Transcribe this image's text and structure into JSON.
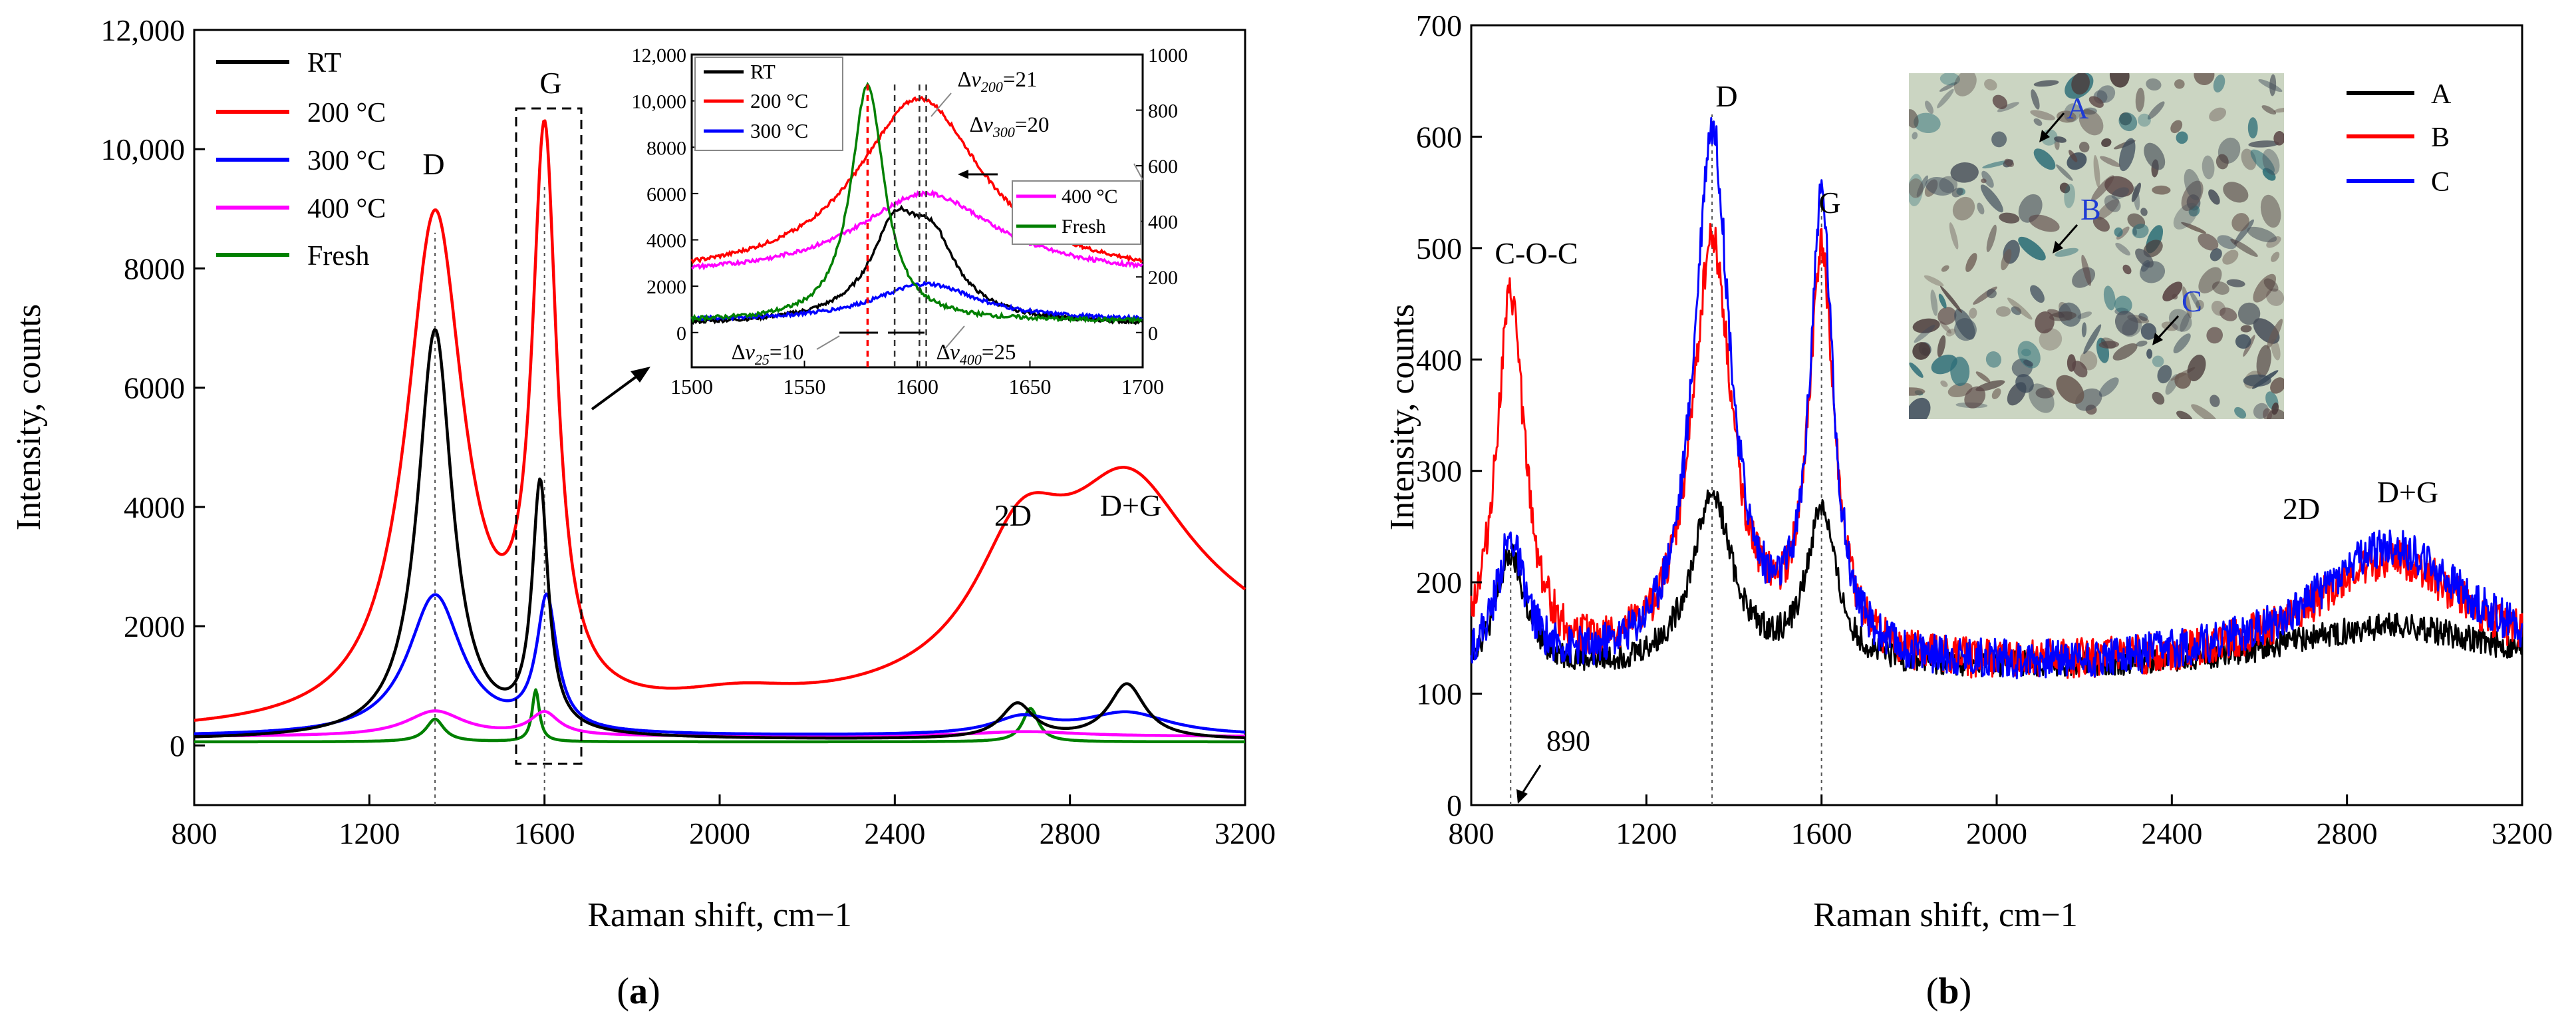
{
  "chart_data": [
    {
      "id": "a",
      "type": "line",
      "panel_label": "a",
      "xlabel": "Raman shift, cm−1",
      "ylabel": "Intensity, counts",
      "xlim": [
        800,
        3200
      ],
      "ylim": [
        -1000,
        12000
      ],
      "x_ticks": [
        800,
        1200,
        1600,
        2000,
        2400,
        2800,
        3200
      ],
      "y_ticks": [
        0,
        2000,
        4000,
        6000,
        8000,
        10000,
        12000
      ],
      "y_tick_labels": [
        "0",
        "2000",
        "4000",
        "6000",
        "8000",
        "10,000",
        "12,000"
      ],
      "series": [
        {
          "name": "RT",
          "color": "#000000",
          "baseline": 90,
          "peaks": [
            [
              1350,
              6850,
              48
            ],
            [
              1590,
              4120,
              22
            ],
            [
              2680,
              580,
              45
            ],
            [
              2930,
              920,
              50
            ]
          ]
        },
        {
          "name": "200 °C",
          "color": "#ff0000",
          "baseline": 120,
          "peaks": [
            [
              1350,
              8500,
              80
            ],
            [
              1600,
              9300,
              34
            ],
            [
              2040,
              280,
              180
            ],
            [
              2690,
              2100,
              130
            ],
            [
              2930,
              2500,
              170
            ],
            [
              3100,
              1700,
              500
            ]
          ]
        },
        {
          "name": "300 °C",
          "color": "#0000ff",
          "baseline": 150,
          "peaks": [
            [
              1350,
              2350,
              75
            ],
            [
              1605,
              2200,
              28
            ],
            [
              2690,
              280,
              80
            ],
            [
              2930,
              380,
              120
            ]
          ]
        },
        {
          "name": "400 °C",
          "color": "#ff00ff",
          "baseline": 150,
          "peaks": [
            [
              1350,
              420,
              80
            ],
            [
              1600,
              380,
              40
            ],
            [
              2700,
              80,
              150
            ]
          ]
        },
        {
          "name": "Fresh",
          "color": "#008000",
          "baseline": 60,
          "peaks": [
            [
              1350,
              380,
              25
            ],
            [
              1580,
              870,
              10
            ],
            [
              2710,
              560,
              22
            ]
          ]
        }
      ],
      "annotations": {
        "D": "D",
        "G": "G",
        "2D": "2D",
        "DG": "D+G"
      },
      "inset": {
        "xlim": [
          1500,
          1700
        ],
        "ylim_left": [
          -1500,
          12000
        ],
        "ylim_right": [
          -125,
          1000
        ],
        "x_ticks": [
          1500,
          1550,
          1600,
          1650,
          1700
        ],
        "y_ticks_left": [
          0,
          2000,
          4000,
          6000,
          8000,
          10000,
          12000
        ],
        "y_tick_labels_left": [
          "0",
          "2000",
          "4000",
          "6000",
          "8000",
          "10,000",
          "12,000"
        ],
        "y_ticks_right": [
          0,
          200,
          400,
          600,
          800,
          1000
        ],
        "series": [
          {
            "name": "RT",
            "color": "#000000",
            "axis": "left",
            "peaks": [
              [
                1590,
                3200,
                12
              ],
              [
                1607,
                2500,
                12
              ],
              [
                1598,
                1000,
                30
              ]
            ],
            "baseline": 300
          },
          {
            "name": "200 °C",
            "color": "#ff0000",
            "axis": "left",
            "peaks": [
              [
                1601,
                7800,
                34
              ]
            ],
            "baseline": 2300
          },
          {
            "name": "300 °C",
            "color": "#0000ff",
            "axis": "left",
            "peaks": [
              [
                1604,
                1600,
                28
              ]
            ],
            "baseline": 500
          },
          {
            "name": "400 °C",
            "color": "#ff00ff",
            "axis": "right",
            "peaks": [
              [
                1604,
                300,
                38
              ]
            ],
            "baseline": 200
          },
          {
            "name": "Fresh",
            "color": "#008000",
            "axis": "right",
            "peaks": [
              [
                1578,
                850,
                9
              ]
            ],
            "baseline": 40
          }
        ],
        "legend_left": [
          "RT",
          "200 °C",
          "300 °C"
        ],
        "legend_right": [
          "400 °C",
          "Fresh"
        ],
        "annotation_v200_prefix": "∆v",
        "annotation_v200_sub": "200",
        "annotation_v200_value": "=21",
        "annotation_v300_prefix": "∆v",
        "annotation_v300_sub": "300",
        "annotation_v300_value": "=20",
        "annotation_v25_prefix": "∆v",
        "annotation_v25_sub": "25",
        "annotation_v25_value": "=10",
        "annotation_v400_prefix": "∆v",
        "annotation_v400_sub": "400",
        "annotation_v400_value": "=25",
        "marker_lines": [
          1578,
          1590,
          1601,
          1604
        ]
      }
    },
    {
      "id": "b",
      "type": "line",
      "panel_label": "b",
      "xlabel": "Raman shift, cm−1",
      "ylabel": "Intensity, counts",
      "xlim": [
        800,
        3200
      ],
      "ylim": [
        0,
        700
      ],
      "x_ticks": [
        800,
        1200,
        1600,
        2000,
        2400,
        2800,
        3200
      ],
      "y_ticks": [
        0,
        100,
        200,
        300,
        400,
        500,
        600,
        700
      ],
      "series": [
        {
          "name": "A",
          "color": "#000000",
          "baseline": 120,
          "noise": 12,
          "peaks": [
            [
              890,
              100,
              40
            ],
            [
              1350,
              155,
              55
            ],
            [
              1600,
              140,
              40
            ],
            [
              2900,
              40,
              300
            ]
          ]
        },
        {
          "name": "B",
          "color": "#ff0000",
          "baseline": 120,
          "noise": 18,
          "peaks": [
            [
              890,
              330,
              40
            ],
            [
              1350,
              380,
              55
            ],
            [
              1600,
              360,
              35
            ],
            [
              2900,
              100,
              220
            ]
          ]
        },
        {
          "name": "C",
          "color": "#0000ff",
          "baseline": 120,
          "noise": 18,
          "peaks": [
            [
              890,
              110,
              40
            ],
            [
              1350,
              480,
              50
            ],
            [
              1600,
              410,
              32
            ],
            [
              2900,
              110,
              220
            ]
          ]
        }
      ],
      "annotations": {
        "COC": "C-O-C",
        "D": "D",
        "G": "G",
        "2D": "2D",
        "DG": "D+G",
        "marker_890": "890"
      },
      "marker_lines": [
        890,
        1350,
        1600
      ],
      "image_labels": [
        "A",
        "B",
        "C"
      ]
    }
  ]
}
